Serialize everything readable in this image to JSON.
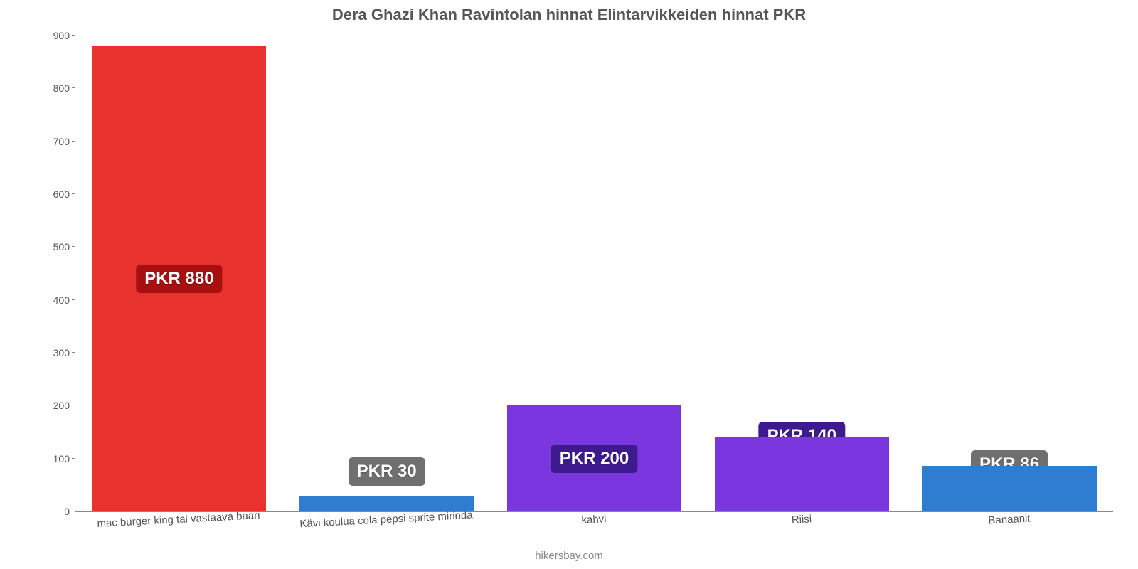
{
  "chart": {
    "type": "bar",
    "title": "Dera Ghazi Khan Ravintolan hinnat Elintarvikkeiden hinnat PKR",
    "title_fontsize": 22,
    "title_color": "#565656",
    "background_color": "#ffffff",
    "axis_color": "#888888",
    "tick_font_color": "#555555",
    "tick_fontsize": 14,
    "categories": [
      "mac burger king tai vastaava baari",
      "Kävi koulua cola pepsi sprite mirinda",
      "kahvi",
      "Riisi",
      "Banaanit"
    ],
    "values": [
      880,
      30,
      200,
      140,
      86
    ],
    "value_labels": [
      "PKR 880",
      "PKR 30",
      "PKR 200",
      "PKR 140",
      "PKR 86"
    ],
    "bar_colors": [
      "#e8322d",
      "#2f7dd1",
      "#7b36e0",
      "#7b36e0",
      "#2f7dd1"
    ],
    "badge_colors": [
      "#a80f0f",
      "#6f6f6f",
      "#3e1a8f",
      "#3e1a8f",
      "#6f6f6f"
    ],
    "badge_fontsize": 24,
    "badge_text_color": "#ffffff",
    "ylim": [
      0,
      900
    ],
    "ytick_step": 100,
    "yticks": [
      0,
      100,
      200,
      300,
      400,
      500,
      600,
      700,
      800,
      900
    ],
    "yticks_labels": [
      "0",
      "100",
      "200",
      "300",
      "400",
      "500",
      "600",
      "700",
      "800",
      "900"
    ],
    "bar_width_pct": 84,
    "grid": false,
    "credit": "hikersbay.com",
    "credit_color": "#888888",
    "xlabel_fontsize": 15,
    "xlabel_rotation_deg": -3
  }
}
